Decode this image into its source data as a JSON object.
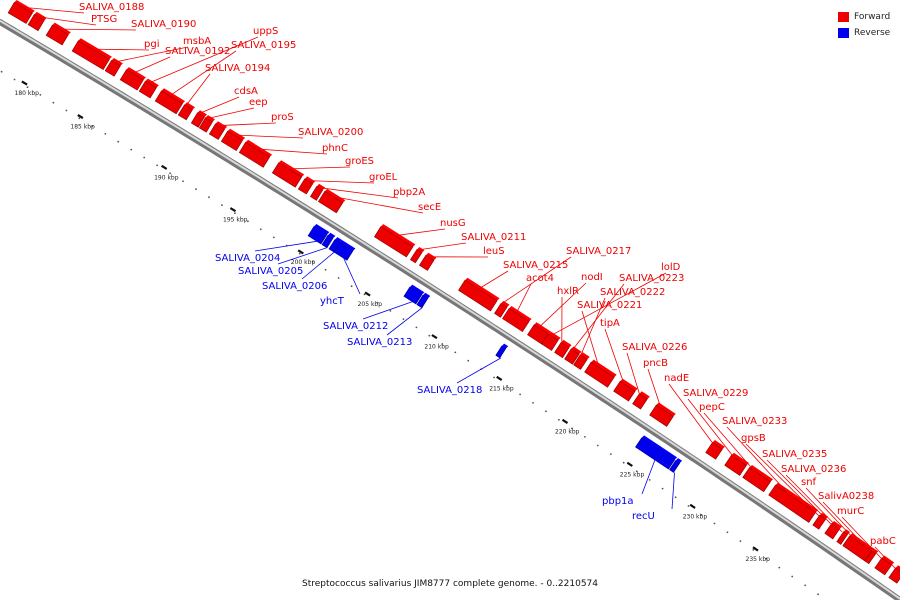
{
  "legend": [
    {
      "label": "Forward",
      "color": "#ee0000"
    },
    {
      "label": "Reverse",
      "color": "#0000ee"
    }
  ],
  "caption": "Streptococcus salivarius JIM8777 complete genome. - 0..2210574",
  "colors": {
    "forward": "#ee0000",
    "reverse": "#0000ee",
    "backbone": "#888888"
  },
  "ticks": [
    "180 kbp",
    "185 kbp",
    "190 kbp",
    "195 kbp",
    "200 kbp",
    "205 kbp",
    "210 kbp",
    "215 kbp",
    "220 kbp",
    "225 kbp",
    "230 kbp",
    "235 kbp"
  ],
  "forward_genes": [
    "SALIVA_0188",
    "PTSG",
    "SALIVA_0190",
    "pgi",
    "msbA",
    "SALIVA_0192",
    "uppS",
    "SALIVA_0195",
    "SALIVA_0194",
    "cdsA",
    "eep",
    "proS",
    "SALIVA_0200",
    "phnC",
    "groES",
    "groEL",
    "pbp2A",
    "secE",
    "nusG",
    "SALIVA_0211",
    "leuS",
    "SALIVA_0215",
    "SALIVA_0217",
    "acot4",
    "nodI",
    "lolD",
    "hxlR",
    "SALIVA_0223",
    "SALIVA_0222",
    "SALIVA_0221",
    "tipA",
    "SALIVA_0226",
    "pncB",
    "nadE",
    "SALIVA_0229",
    "pepC",
    "SALIVA_0233",
    "gpsB",
    "SALIVA_0235",
    "SALIVA_0236",
    "snf",
    "SalivA0238",
    "murC",
    "pabC"
  ],
  "reverse_genes": [
    "SALIVA_0204",
    "SALIVA_0205",
    "SALIVA_0206",
    "yhcT",
    "SALIVA_0212",
    "SALIVA_0213",
    "SALIVA_0218",
    "pbp1a",
    "recU"
  ]
}
